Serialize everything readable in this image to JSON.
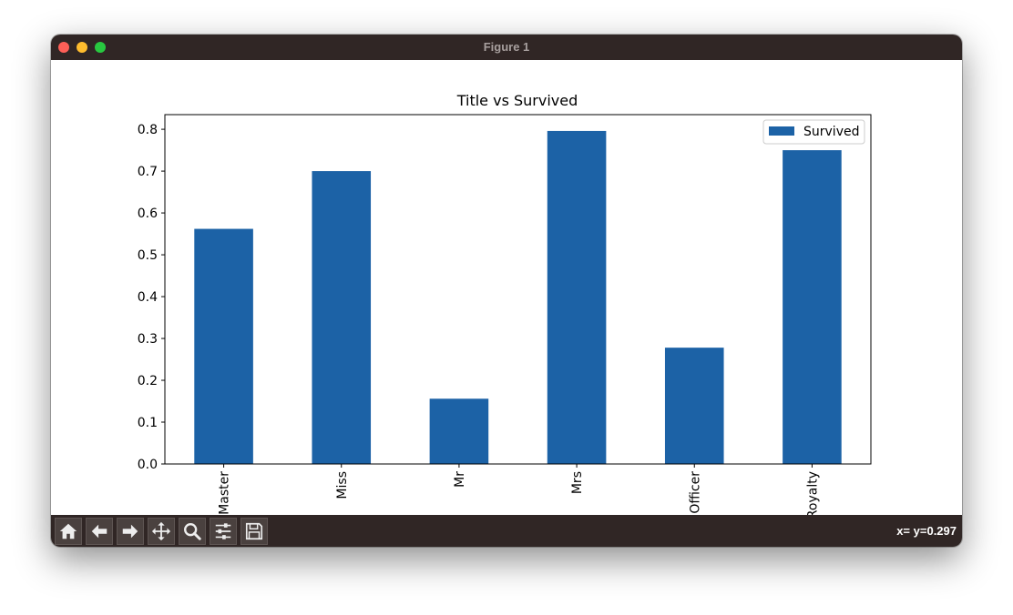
{
  "window": {
    "title": "Figure 1"
  },
  "toolbar": {
    "buttons": [
      {
        "name": "home-icon"
      },
      {
        "name": "back-arrow-icon"
      },
      {
        "name": "forward-arrow-icon"
      },
      {
        "name": "pan-icon"
      },
      {
        "name": "zoom-icon"
      },
      {
        "name": "configure-subplots-icon"
      },
      {
        "name": "save-icon"
      }
    ],
    "coords": "x= y=0.297"
  },
  "colors": {
    "bar": "#1c62a6",
    "titlebar": "#302625"
  },
  "chart_data": {
    "type": "bar",
    "title": "Title vs Survived",
    "xlabel": "",
    "ylabel": "",
    "categories": [
      "Master",
      "Miss",
      "Mr",
      "Mrs",
      "Officer",
      "Royalty"
    ],
    "series": [
      {
        "name": "Survived",
        "values": [
          0.562,
          0.7,
          0.156,
          0.796,
          0.278,
          0.75
        ]
      }
    ],
    "ylim": [
      0,
      0.835
    ],
    "yticks": [
      "0.0",
      "0.1",
      "0.2",
      "0.3",
      "0.4",
      "0.5",
      "0.6",
      "0.7",
      "0.8"
    ],
    "legend": "top-right",
    "grid": false
  }
}
